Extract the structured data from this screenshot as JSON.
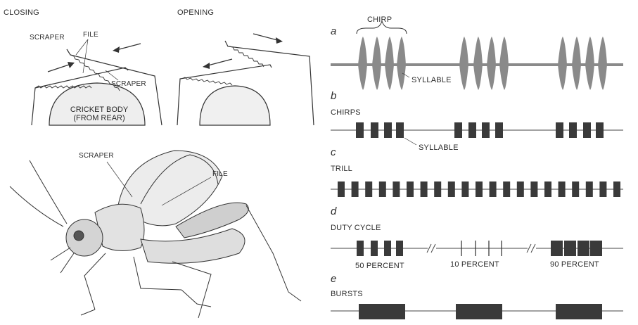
{
  "left": {
    "closing_label": "CLOSING",
    "opening_label": "OPENING",
    "scraper_top": "SCRAPER",
    "file_label": "FILE",
    "scraper_mid": "SCRAPER",
    "cricket_body_line1": "CRICKET BODY",
    "cricket_body_line2": "(FROM REAR)",
    "cricket_scraper": "SCRAPER",
    "cricket_file": "FILE"
  },
  "panels": {
    "a": {
      "letter": "a",
      "chirp_label": "CHIRP",
      "syllable_label": "SYLLABLE"
    },
    "b": {
      "letter": "b",
      "title": "CHIRPS",
      "syllable_label": "SYLLABLE",
      "groups": [
        [
          506,
          527,
          546,
          563
        ],
        [
          646,
          666,
          685,
          704
        ],
        [
          790,
          809,
          829,
          847
        ]
      ]
    },
    "c": {
      "letter": "c",
      "title": "TRILL",
      "count": 21
    },
    "d": {
      "letter": "d",
      "title": "DUTY CYCLE",
      "labels": [
        "50 PERCENT",
        "10 PERCENT",
        "90 PERCENT"
      ]
    },
    "e": {
      "letter": "e",
      "title": "BURSTS"
    }
  }
}
